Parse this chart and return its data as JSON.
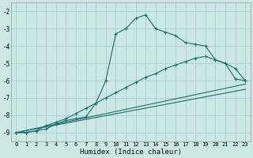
{
  "xlabel": "Humidex (Indice chaleur)",
  "x_ticks": [
    0,
    1,
    2,
    3,
    4,
    5,
    6,
    7,
    8,
    9,
    10,
    11,
    12,
    13,
    14,
    15,
    16,
    17,
    18,
    19,
    20,
    21,
    22,
    23
  ],
  "xlim": [
    -0.5,
    23.5
  ],
  "ylim": [
    -9.5,
    -1.5
  ],
  "y_ticks": [
    -9,
    -8,
    -7,
    -6,
    -5,
    -4,
    -3,
    -2
  ],
  "bg_color": "#cce8e4",
  "grid_color": "#aed4cf",
  "line_color": "#1a7070",
  "line1_x": [
    0,
    1,
    2,
    3,
    4,
    5,
    6,
    7,
    8,
    9,
    10,
    11,
    12,
    13,
    14,
    15,
    16,
    17,
    18,
    19,
    20,
    21,
    22,
    23
  ],
  "line1_y": [
    -9.0,
    -9.0,
    -8.9,
    -8.8,
    -8.5,
    -8.3,
    -8.2,
    -8.1,
    -7.3,
    -6.0,
    -3.3,
    -3.0,
    -2.4,
    -2.2,
    -3.0,
    -3.2,
    -3.4,
    -3.8,
    -3.9,
    -4.0,
    -4.8,
    -5.0,
    -5.9,
    -6.0
  ],
  "line2_x": [
    0,
    1,
    2,
    3,
    4,
    5,
    6,
    7,
    8,
    9,
    10,
    11,
    12,
    13,
    14,
    15,
    16,
    17,
    18,
    19,
    20,
    21,
    22,
    23
  ],
  "line2_y": [
    -9.0,
    -9.0,
    -8.9,
    -8.6,
    -8.4,
    -8.2,
    -7.9,
    -7.6,
    -7.3,
    -7.0,
    -6.7,
    -6.4,
    -6.1,
    -5.8,
    -5.6,
    -5.3,
    -5.1,
    -4.9,
    -4.7,
    -4.6,
    -4.8,
    -5.0,
    -5.3,
    -6.0
  ],
  "line3_x": [
    0,
    23
  ],
  "line3_y": [
    -9.0,
    -6.2
  ],
  "line4_x": [
    0,
    23
  ],
  "line4_y": [
    -9.0,
    -6.5
  ]
}
